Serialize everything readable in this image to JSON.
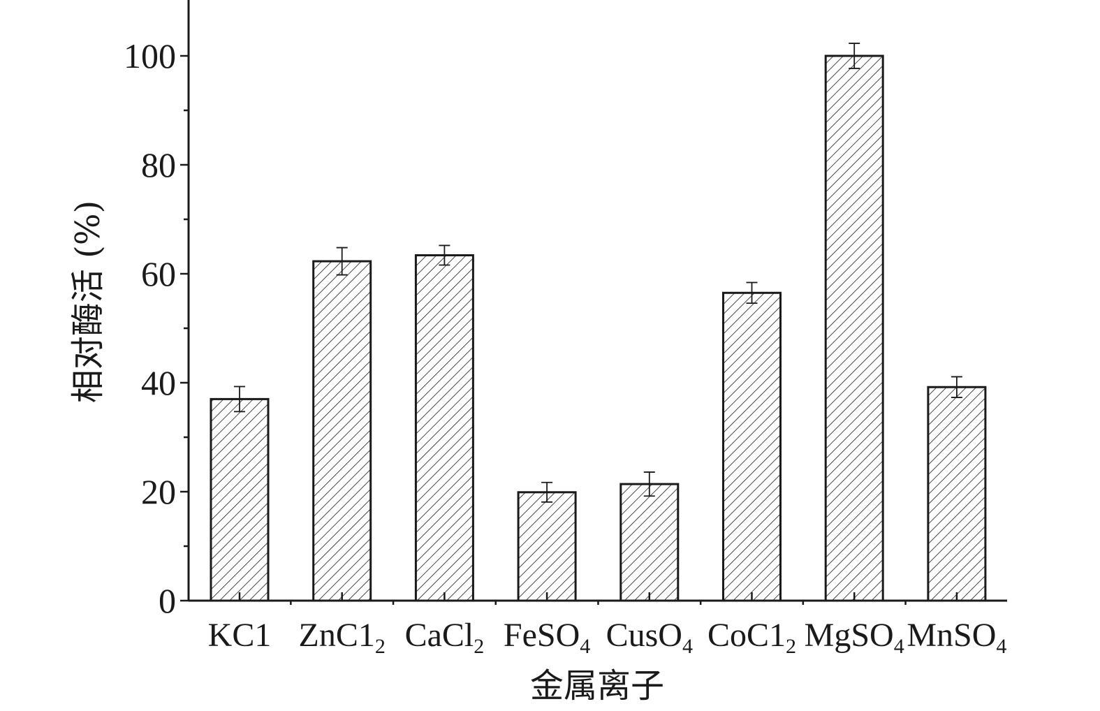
{
  "chart_data": {
    "type": "bar",
    "xlabel": "金属离子",
    "ylabel": "相对酶活 (%)",
    "ylim": [
      0,
      110
    ],
    "yticks": [
      0,
      20,
      40,
      60,
      80,
      100
    ],
    "grid": false,
    "pattern": "diagonal-hatch",
    "bar_color": "#ffffff",
    "line_color": "#1a1a1a",
    "categories": [
      {
        "main": "KC1",
        "sub": ""
      },
      {
        "main": "ZnC1",
        "sub": "2"
      },
      {
        "main": "CaCl",
        "sub": "2"
      },
      {
        "main": "FeSO",
        "sub": "4"
      },
      {
        "main": "CusO",
        "sub": "4"
      },
      {
        "main": "CoC1",
        "sub": "2"
      },
      {
        "main": "MgSO",
        "sub": "4"
      },
      {
        "main": "MnSO",
        "sub": "4"
      }
    ],
    "values": [
      37,
      62.3,
      63.4,
      19.9,
      21.4,
      56.5,
      100,
      39.2
    ],
    "errors": [
      2.3,
      2.5,
      1.8,
      1.8,
      2.2,
      1.9,
      2.3,
      1.9
    ]
  }
}
